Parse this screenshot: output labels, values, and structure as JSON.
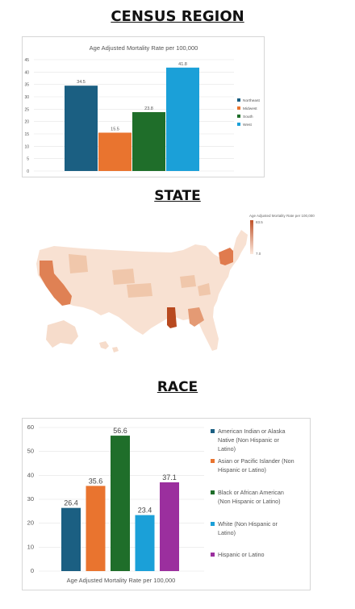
{
  "headings": {
    "census": "CENSUS REGION",
    "state": "STATE",
    "race": "RACE"
  },
  "chart_data": [
    {
      "type": "bar",
      "title": "Age Adjusted Mortality Rate per 100,000",
      "categories": [
        "Northeast",
        "Midwest",
        "South",
        "West"
      ],
      "values": [
        34.5,
        15.5,
        23.8,
        41.8
      ],
      "colors": [
        "#1b5f82",
        "#e9742f",
        "#1f6e2a",
        "#1ba0d8"
      ],
      "ylim": [
        0,
        45
      ],
      "yticks": [
        0,
        5,
        10,
        15,
        20,
        25,
        30,
        35,
        40,
        45
      ],
      "grid": true,
      "legend": "right"
    },
    {
      "type": "heatmap",
      "title": "Age Adjusted Mortality Rate per 100,000",
      "scale_max": "83.5",
      "scale_min": "7.0",
      "highlighted": [
        "California",
        "New York",
        "Mississippi",
        "Georgia"
      ]
    },
    {
      "type": "bar",
      "title": "",
      "xlabel": "Age Adjusted Mortality Rate per 100,000",
      "categories": [
        "American Indian or Alaska Native (Non Hispanic or Latino)",
        "Asian or Pacific Islander (Non Hispanic or Latino)",
        "Black or African American (Non Hispanic or Latino)",
        "White (Non Hispanic or Latino)",
        "Hispanic or Latino"
      ],
      "values": [
        26.4,
        35.6,
        56.6,
        23.4,
        37.1
      ],
      "colors": [
        "#1b5f82",
        "#e9742f",
        "#1f6e2a",
        "#1ba0d8",
        "#9b2f9e"
      ],
      "ylim": [
        0,
        60
      ],
      "yticks": [
        0,
        10,
        20,
        30,
        40,
        50,
        60
      ],
      "grid": true,
      "legend": "right"
    }
  ],
  "legend_lines": [
    [
      "American Indian or Alaska",
      "Native (Non Hispanic or",
      "Latino)"
    ],
    [
      "Asian or Pacific Islander (Non",
      "Hispanic or Latino)"
    ],
    [
      "Black or African American",
      "(Non Hispanic or Latino)"
    ],
    [
      "White (Non Hispanic or",
      "Latino)"
    ],
    [
      "Hispanic or Latino"
    ]
  ]
}
